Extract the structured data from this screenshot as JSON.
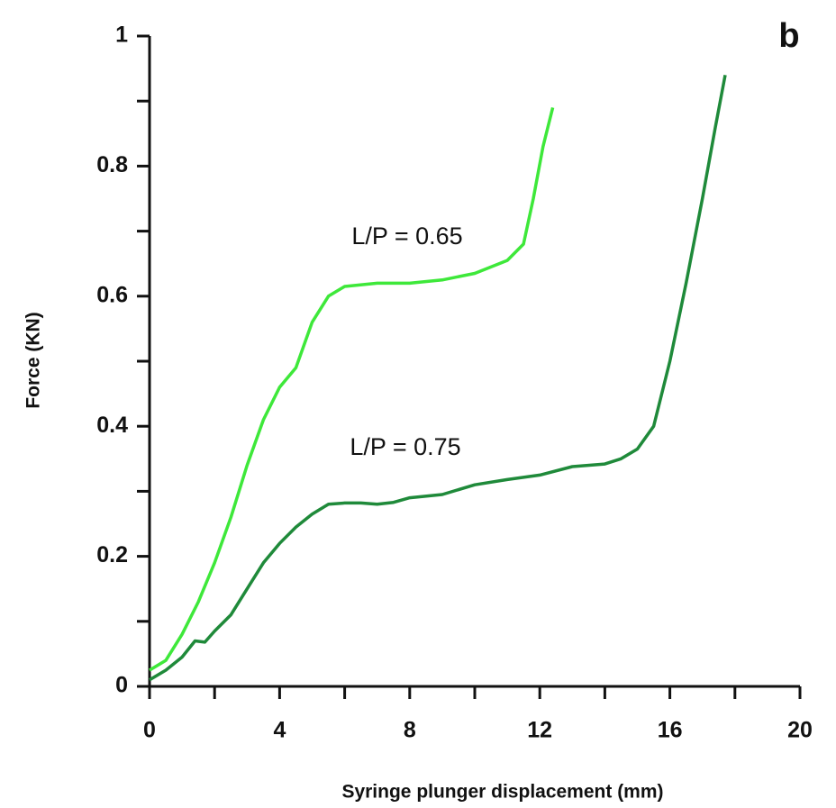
{
  "chart_data": {
    "type": "line",
    "panel_label": "b",
    "xlabel": "Syringe plunger displacement (mm)",
    "ylabel": "Force (KN)",
    "xlim": [
      0,
      20
    ],
    "ylim": [
      0,
      1
    ],
    "xticks": [
      0,
      4,
      8,
      12,
      16,
      20
    ],
    "yticks": [
      0,
      0.2,
      0.4,
      0.6,
      0.8,
      1
    ],
    "xminorticks": [
      2,
      6,
      10,
      14,
      18
    ],
    "yminorticks": [
      0.1,
      0.3,
      0.5,
      0.7,
      0.9
    ],
    "series": [
      {
        "name": "L/P = 0.65",
        "color": "#3ee83a",
        "x": [
          0,
          0.5,
          1,
          1.5,
          2,
          2.5,
          3,
          3.5,
          4,
          4.5,
          5,
          5.5,
          6,
          7,
          8,
          9,
          10,
          11,
          11.5,
          11.8,
          12.1,
          12.4
        ],
        "values": [
          0.025,
          0.04,
          0.08,
          0.13,
          0.19,
          0.26,
          0.34,
          0.41,
          0.46,
          0.49,
          0.56,
          0.6,
          0.615,
          0.62,
          0.62,
          0.625,
          0.635,
          0.655,
          0.68,
          0.75,
          0.83,
          0.89
        ]
      },
      {
        "name": "L/P = 0.75",
        "color": "#1f8a3a",
        "x": [
          0,
          0.5,
          1,
          1.4,
          1.7,
          2,
          2.5,
          3,
          3.5,
          4,
          4.5,
          5,
          5.5,
          6,
          6.5,
          7,
          7.5,
          8,
          9,
          10,
          11,
          12,
          13,
          14,
          14.5,
          15,
          15.5,
          16,
          16.5,
          17,
          17.4,
          17.7
        ],
        "values": [
          0.01,
          0.025,
          0.045,
          0.07,
          0.068,
          0.085,
          0.11,
          0.15,
          0.19,
          0.22,
          0.245,
          0.265,
          0.28,
          0.282,
          0.282,
          0.28,
          0.283,
          0.29,
          0.295,
          0.31,
          0.318,
          0.325,
          0.338,
          0.342,
          0.35,
          0.365,
          0.4,
          0.5,
          0.62,
          0.75,
          0.86,
          0.94
        ]
      }
    ]
  }
}
